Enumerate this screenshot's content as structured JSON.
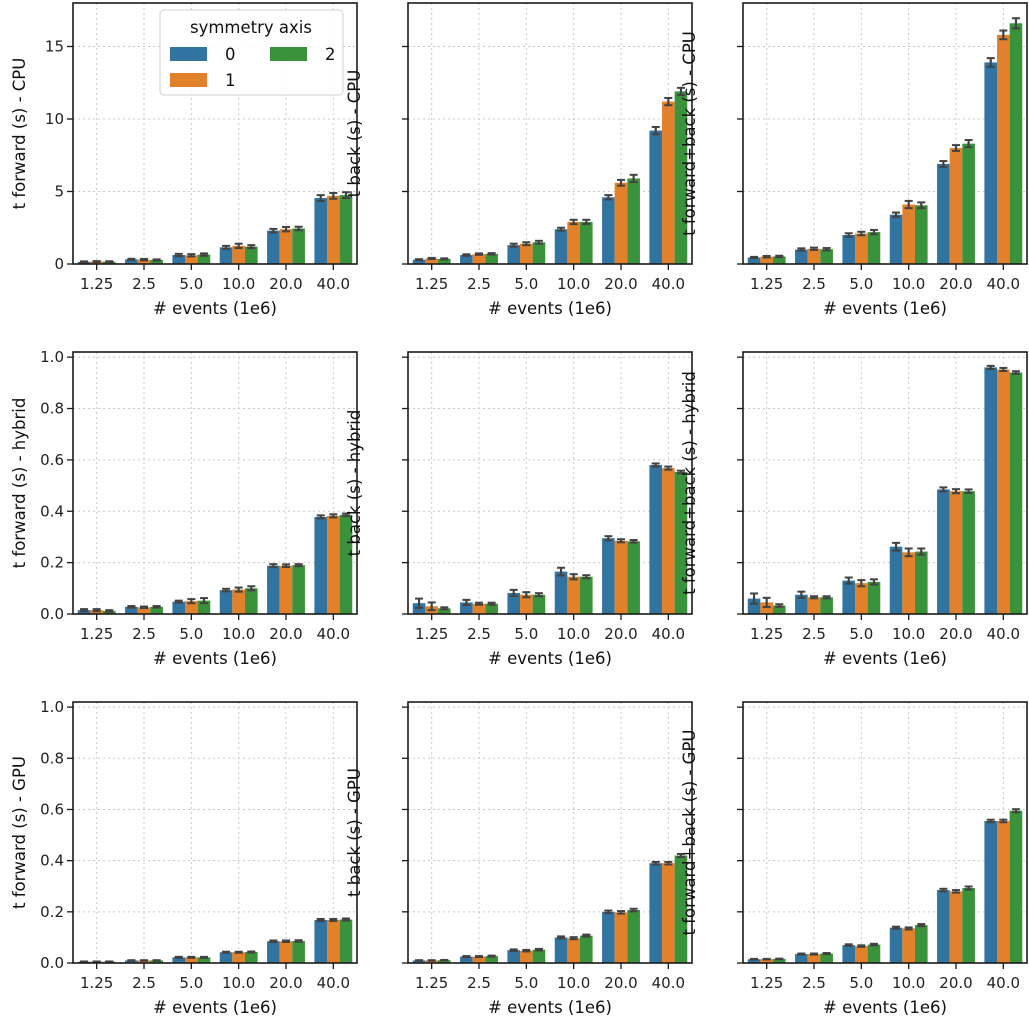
{
  "figure": {
    "legend": {
      "title": "symmetry axis",
      "placement": "top-right of first panel",
      "entries": [
        {
          "label": "0",
          "color": "#3274a1"
        },
        {
          "label": "1",
          "color": "#e1812c"
        },
        {
          "label": "2",
          "color": "#3a923a"
        }
      ]
    }
  },
  "chart_data": [
    {
      "type": "bar",
      "panel": "forward-cpu",
      "title": "",
      "xlabel": "# events (1e6)",
      "ylabel": "t forward (s) - CPU",
      "categories": [
        "1.25",
        "2.5",
        "5.0",
        "10.0",
        "20.0",
        "40.0"
      ],
      "ylim": [
        0,
        18
      ],
      "yticks": [
        0,
        5,
        10,
        15
      ],
      "ytick_labels": [
        "0",
        "5",
        "10",
        "15"
      ],
      "grid": true,
      "series": [
        {
          "name": "0",
          "values": [
            0.15,
            0.32,
            0.62,
            1.15,
            2.3,
            4.55
          ],
          "errors": [
            0.03,
            0.04,
            0.08,
            0.1,
            0.12,
            0.2
          ]
        },
        {
          "name": "1",
          "values": [
            0.17,
            0.3,
            0.6,
            1.25,
            2.4,
            4.7
          ],
          "errors": [
            0.03,
            0.05,
            0.08,
            0.15,
            0.15,
            0.2
          ]
        },
        {
          "name": "2",
          "values": [
            0.16,
            0.28,
            0.65,
            1.2,
            2.45,
            4.75
          ],
          "errors": [
            0.03,
            0.04,
            0.08,
            0.1,
            0.12,
            0.2
          ]
        }
      ]
    },
    {
      "type": "bar",
      "panel": "back-cpu",
      "title": "",
      "xlabel": "# events (1e6)",
      "ylabel": "t back (s) - CPU",
      "categories": [
        "1.25",
        "2.5",
        "5.0",
        "10.0",
        "20.0",
        "40.0"
      ],
      "ylim": [
        0,
        18
      ],
      "yticks": [
        0,
        5,
        10,
        15
      ],
      "ytick_labels": [
        "",
        "",
        "",
        ""
      ],
      "grid": true,
      "series": [
        {
          "name": "0",
          "values": [
            0.3,
            0.62,
            1.3,
            2.4,
            4.6,
            9.2
          ],
          "errors": [
            0.03,
            0.05,
            0.1,
            0.1,
            0.15,
            0.25
          ]
        },
        {
          "name": "1",
          "values": [
            0.38,
            0.68,
            1.4,
            2.9,
            5.6,
            11.2
          ],
          "errors": [
            0.04,
            0.05,
            0.1,
            0.15,
            0.2,
            0.25
          ]
        },
        {
          "name": "2",
          "values": [
            0.35,
            0.7,
            1.5,
            2.9,
            5.9,
            11.9
          ],
          "errors": [
            0.04,
            0.05,
            0.1,
            0.15,
            0.25,
            0.25
          ]
        }
      ]
    },
    {
      "type": "bar",
      "panel": "forward-back-cpu",
      "title": "",
      "xlabel": "# events (1e6)",
      "ylabel": "t forward+back (s) - CPU",
      "categories": [
        "1.25",
        "2.5",
        "5.0",
        "10.0",
        "20.0",
        "40.0"
      ],
      "ylim": [
        0,
        18
      ],
      "yticks": [
        0,
        5,
        10,
        15
      ],
      "ytick_labels": [
        "",
        "",
        "",
        ""
      ],
      "grid": true,
      "series": [
        {
          "name": "0",
          "values": [
            0.45,
            1.0,
            2.0,
            3.4,
            6.9,
            13.9
          ],
          "errors": [
            0.04,
            0.08,
            0.12,
            0.15,
            0.2,
            0.3
          ]
        },
        {
          "name": "1",
          "values": [
            0.5,
            1.05,
            2.1,
            4.1,
            8.0,
            15.8
          ],
          "errors": [
            0.05,
            0.08,
            0.12,
            0.25,
            0.2,
            0.3
          ]
        },
        {
          "name": "2",
          "values": [
            0.52,
            1.02,
            2.2,
            4.05,
            8.3,
            16.6
          ],
          "errors": [
            0.05,
            0.08,
            0.15,
            0.2,
            0.25,
            0.35
          ]
        }
      ]
    },
    {
      "type": "bar",
      "panel": "forward-hybrid",
      "title": "",
      "xlabel": "# events (1e6)",
      "ylabel": "t forward (s) - hybrid",
      "categories": [
        "1.25",
        "2.5",
        "5.0",
        "10.0",
        "20.0",
        "40.0"
      ],
      "ylim": [
        0,
        1.02
      ],
      "yticks": [
        0,
        0.2,
        0.4,
        0.6,
        0.8,
        1.0
      ],
      "ytick_labels": [
        "0.0",
        "0.2",
        "0.4",
        "0.6",
        "0.8",
        "1.0"
      ],
      "grid": true,
      "series": [
        {
          "name": "0",
          "values": [
            0.015,
            0.028,
            0.048,
            0.093,
            0.188,
            0.378
          ],
          "errors": [
            0.004,
            0.003,
            0.004,
            0.005,
            0.006,
            0.006
          ]
        },
        {
          "name": "1",
          "values": [
            0.015,
            0.026,
            0.05,
            0.095,
            0.188,
            0.382
          ],
          "errors": [
            0.004,
            0.003,
            0.008,
            0.008,
            0.005,
            0.006
          ]
        },
        {
          "name": "2",
          "values": [
            0.012,
            0.028,
            0.052,
            0.1,
            0.19,
            0.386
          ],
          "errors": [
            0.003,
            0.003,
            0.01,
            0.008,
            0.004,
            0.005
          ]
        }
      ]
    },
    {
      "type": "bar",
      "panel": "back-hybrid",
      "title": "",
      "xlabel": "# events (1e6)",
      "ylabel": "t back (s) - hybrid",
      "categories": [
        "1.25",
        "2.5",
        "5.0",
        "10.0",
        "20.0",
        "40.0"
      ],
      "ylim": [
        0,
        1.02
      ],
      "yticks": [
        0,
        0.2,
        0.4,
        0.6,
        0.8,
        1.0
      ],
      "ytick_labels": [
        "",
        "",
        "",
        "",
        "",
        ""
      ],
      "grid": true,
      "series": [
        {
          "name": "0",
          "values": [
            0.042,
            0.045,
            0.082,
            0.165,
            0.295,
            0.58
          ],
          "errors": [
            0.018,
            0.01,
            0.012,
            0.015,
            0.008,
            0.006
          ]
        },
        {
          "name": "1",
          "values": [
            0.03,
            0.04,
            0.075,
            0.145,
            0.285,
            0.568
          ],
          "errors": [
            0.015,
            0.004,
            0.01,
            0.01,
            0.006,
            0.006
          ]
        },
        {
          "name": "2",
          "values": [
            0.022,
            0.04,
            0.075,
            0.145,
            0.283,
            0.553
          ],
          "errors": [
            0.004,
            0.004,
            0.006,
            0.006,
            0.005,
            0.005
          ]
        }
      ]
    },
    {
      "type": "bar",
      "panel": "forward-back-hybrid",
      "title": "",
      "xlabel": "# events (1e6)",
      "ylabel": "t forward+back (s) - hybrid",
      "categories": [
        "1.25",
        "2.5",
        "5.0",
        "10.0",
        "20.0",
        "40.0"
      ],
      "ylim": [
        0,
        1.02
      ],
      "yticks": [
        0,
        0.2,
        0.4,
        0.6,
        0.8,
        1.0
      ],
      "ytick_labels": [
        "",
        "",
        "",
        "",
        "",
        ""
      ],
      "grid": true,
      "series": [
        {
          "name": "0",
          "values": [
            0.06,
            0.075,
            0.13,
            0.262,
            0.485,
            0.96
          ],
          "errors": [
            0.02,
            0.012,
            0.012,
            0.015,
            0.008,
            0.006
          ]
        },
        {
          "name": "1",
          "values": [
            0.045,
            0.065,
            0.12,
            0.24,
            0.478,
            0.952
          ],
          "errors": [
            0.018,
            0.004,
            0.012,
            0.015,
            0.008,
            0.006
          ]
        },
        {
          "name": "2",
          "values": [
            0.033,
            0.065,
            0.125,
            0.243,
            0.478,
            0.94
          ],
          "errors": [
            0.005,
            0.004,
            0.01,
            0.012,
            0.007,
            0.005
          ]
        }
      ]
    },
    {
      "type": "bar",
      "panel": "forward-gpu",
      "title": "",
      "xlabel": "# events (1e6)",
      "ylabel": "t forward (s) - GPU",
      "categories": [
        "1.25",
        "2.5",
        "5.0",
        "10.0",
        "20.0",
        "40.0"
      ],
      "ylim": [
        0,
        1.02
      ],
      "yticks": [
        0,
        0.2,
        0.4,
        0.6,
        0.8,
        1.0
      ],
      "ytick_labels": [
        "0.0",
        "0.2",
        "0.4",
        "0.6",
        "0.8",
        "1.0"
      ],
      "grid": true,
      "series": [
        {
          "name": "0",
          "values": [
            0.005,
            0.01,
            0.022,
            0.042,
            0.085,
            0.168
          ],
          "errors": [
            0.001,
            0.001,
            0.002,
            0.002,
            0.003,
            0.004
          ]
        },
        {
          "name": "1",
          "values": [
            0.005,
            0.01,
            0.022,
            0.042,
            0.085,
            0.168
          ],
          "errors": [
            0.001,
            0.001,
            0.002,
            0.002,
            0.003,
            0.004
          ]
        },
        {
          "name": "2",
          "values": [
            0.005,
            0.01,
            0.022,
            0.043,
            0.086,
            0.17
          ],
          "errors": [
            0.001,
            0.001,
            0.002,
            0.002,
            0.003,
            0.004
          ]
        }
      ]
    },
    {
      "type": "bar",
      "panel": "back-gpu",
      "title": "",
      "xlabel": "# events (1e6)",
      "ylabel": "t back (s) - GPU",
      "categories": [
        "1.25",
        "2.5",
        "5.0",
        "10.0",
        "20.0",
        "40.0"
      ],
      "ylim": [
        0,
        1.02
      ],
      "yticks": [
        0,
        0.2,
        0.4,
        0.6,
        0.8,
        1.0
      ],
      "ytick_labels": [
        "",
        "",
        "",
        "",
        "",
        ""
      ],
      "grid": true,
      "series": [
        {
          "name": "0",
          "values": [
            0.01,
            0.025,
            0.05,
            0.1,
            0.2,
            0.39
          ],
          "errors": [
            0.001,
            0.002,
            0.003,
            0.004,
            0.005,
            0.005
          ]
        },
        {
          "name": "1",
          "values": [
            0.01,
            0.025,
            0.048,
            0.097,
            0.198,
            0.39
          ],
          "errors": [
            0.001,
            0.002,
            0.003,
            0.004,
            0.005,
            0.005
          ]
        },
        {
          "name": "2",
          "values": [
            0.011,
            0.027,
            0.052,
            0.107,
            0.207,
            0.42
          ],
          "errors": [
            0.001,
            0.002,
            0.003,
            0.004,
            0.005,
            0.006
          ]
        }
      ]
    },
    {
      "type": "bar",
      "panel": "forward-back-gpu",
      "title": "",
      "xlabel": "# events (1e6)",
      "ylabel": "t forward+back (s) - GPU",
      "categories": [
        "1.25",
        "2.5",
        "5.0",
        "10.0",
        "20.0",
        "40.0"
      ],
      "ylim": [
        0,
        1.02
      ],
      "yticks": [
        0,
        0.2,
        0.4,
        0.6,
        0.8,
        1.0
      ],
      "ytick_labels": [
        "",
        "",
        "",
        "",
        "",
        ""
      ],
      "grid": true,
      "series": [
        {
          "name": "0",
          "values": [
            0.015,
            0.035,
            0.07,
            0.138,
            0.285,
            0.555
          ],
          "errors": [
            0.001,
            0.002,
            0.003,
            0.004,
            0.005,
            0.005
          ]
        },
        {
          "name": "1",
          "values": [
            0.015,
            0.035,
            0.066,
            0.135,
            0.28,
            0.555
          ],
          "errors": [
            0.001,
            0.002,
            0.003,
            0.004,
            0.005,
            0.005
          ]
        },
        {
          "name": "2",
          "values": [
            0.016,
            0.037,
            0.072,
            0.148,
            0.293,
            0.595
          ],
          "errors": [
            0.001,
            0.002,
            0.003,
            0.004,
            0.006,
            0.006
          ]
        }
      ]
    }
  ]
}
